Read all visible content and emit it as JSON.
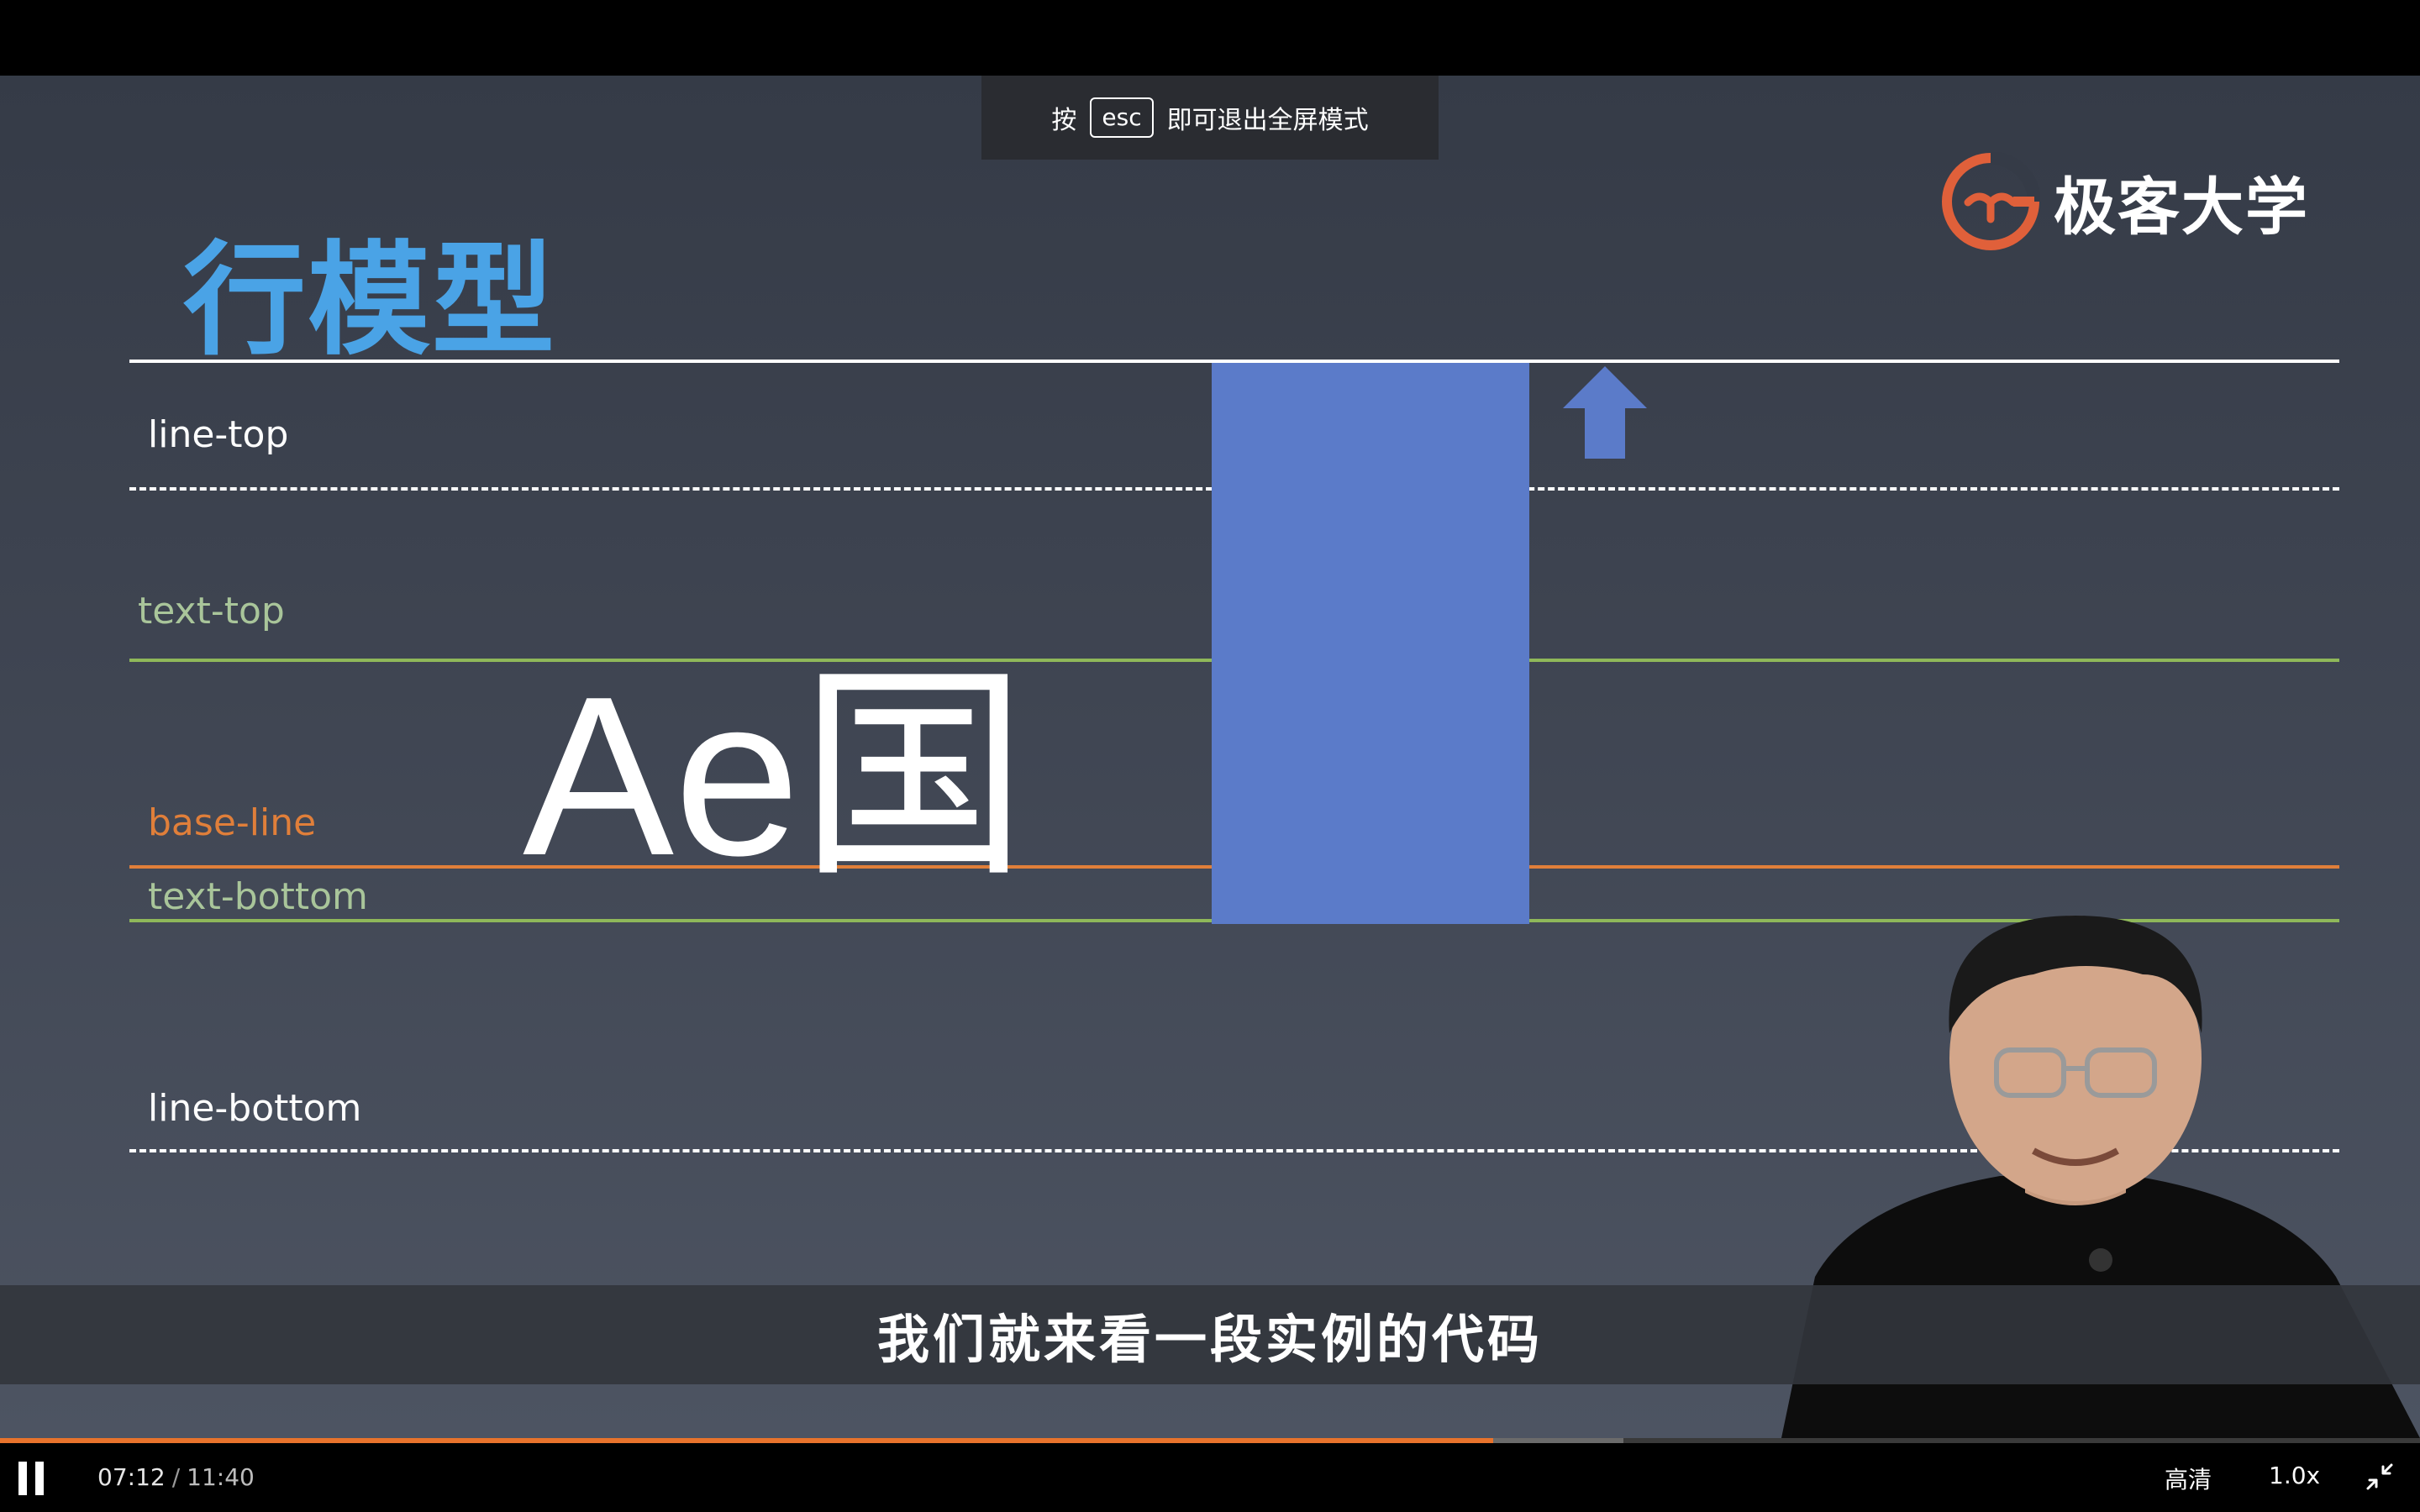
{
  "toast": {
    "prefix": "按",
    "key": "esc",
    "suffix": "即可退出全屏模式"
  },
  "slide": {
    "title": "行模型",
    "logo_text": "极客大学",
    "labels": {
      "line_top": "line-top",
      "text_top": "text-top",
      "base_line": "base-line",
      "text_bottom": "text-bottom",
      "line_bottom": "line-bottom"
    },
    "sample_text": "Ae国",
    "colors": {
      "title": "#4aa3e6",
      "text_top": "#a9c59a",
      "base_line": "#e07f3a",
      "text_bottom": "#a9c59a",
      "green_line": "#8fb85a",
      "orange_line": "#e07f3a",
      "blue_box": "#5b7bc9",
      "arrow": "#5b7bc9",
      "logo": "#e0603a"
    }
  },
  "subtitle": "我们就来看一段实例的代码",
  "player": {
    "current_time": "07:12",
    "separator": "/",
    "total_time": "11:40",
    "progress": 0.617,
    "buffered": 0.671,
    "quality": "高清",
    "speed": "1.0x",
    "icons": {
      "play_pause": "pause-icon",
      "fullscreen": "exit-fullscreen-icon"
    }
  }
}
